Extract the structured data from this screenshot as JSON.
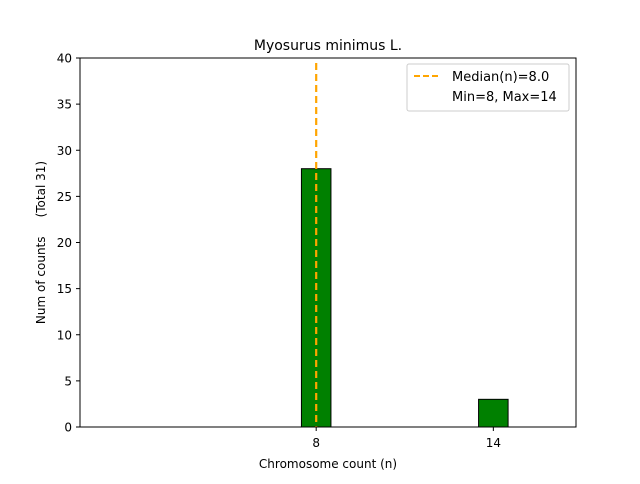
{
  "chart_data": {
    "type": "bar",
    "title": "Myosurus minimus L.",
    "xlabel": "Chromosome count (n)",
    "ylabel": "Num of counts     (Total 31)",
    "x": [
      8,
      14
    ],
    "values": [
      28,
      3
    ],
    "xlim": [
      0,
      16.8
    ],
    "ylim": [
      0,
      40
    ],
    "yticks": [
      0,
      5,
      10,
      15,
      20,
      25,
      30,
      35,
      40
    ],
    "xticks": [
      8,
      14
    ],
    "bar_width": 1,
    "bar_color": "#008000",
    "bar_edge_color": "#000000",
    "median": 8.0,
    "median_color": "#ffa500",
    "grid": false,
    "legend": {
      "placement": "top-right",
      "entries": [
        "Median(n)=8.0",
        "Min=8, Max=14"
      ]
    }
  }
}
